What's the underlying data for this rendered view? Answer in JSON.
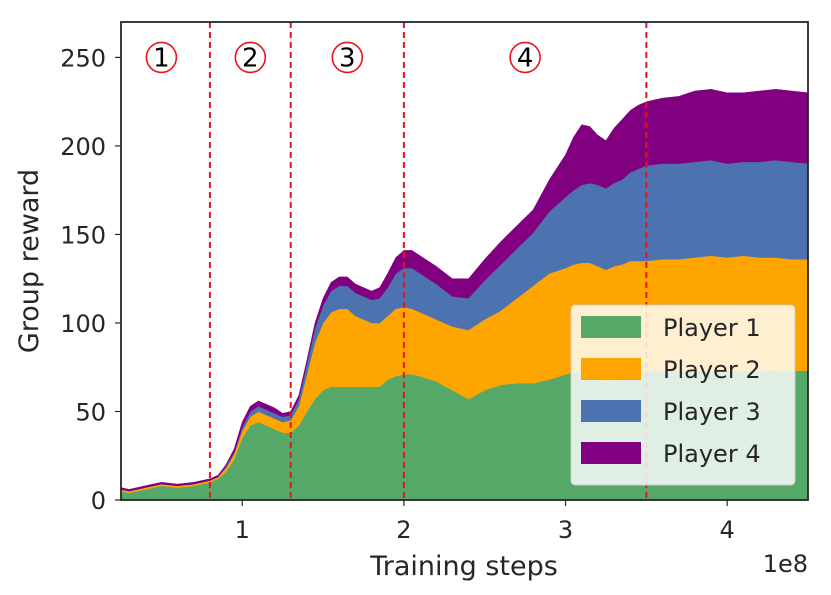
{
  "chart_data": {
    "type": "area",
    "stacked": true,
    "xlabel": "Training steps",
    "ylabel": "Group reward",
    "x_multiplier_label": "1e8",
    "xlim": [
      0.25,
      4.5
    ],
    "ylim": [
      0,
      270
    ],
    "x_ticks": [
      1,
      2,
      3,
      4
    ],
    "x_tick_labels": [
      "1",
      "2",
      "3",
      "4"
    ],
    "y_ticks": [
      0,
      50,
      100,
      150,
      200,
      250
    ],
    "y_tick_labels": [
      "0",
      "50",
      "100",
      "150",
      "200",
      "250"
    ],
    "grid": false,
    "legend_position": "lower-right",
    "phase_lines": [
      0.8,
      1.3,
      2.0,
      3.5
    ],
    "phase_labels": [
      {
        "x": 0.5,
        "y": 250,
        "label": "1"
      },
      {
        "x": 1.05,
        "y": 250,
        "label": "2"
      },
      {
        "x": 1.65,
        "y": 250,
        "label": "3"
      },
      {
        "x": 2.75,
        "y": 250,
        "label": "4"
      }
    ],
    "x": [
      0.25,
      0.3,
      0.4,
      0.5,
      0.6,
      0.7,
      0.8,
      0.85,
      0.9,
      0.95,
      1.0,
      1.05,
      1.1,
      1.15,
      1.2,
      1.25,
      1.3,
      1.35,
      1.4,
      1.45,
      1.5,
      1.55,
      1.6,
      1.65,
      1.7,
      1.75,
      1.8,
      1.85,
      1.9,
      1.95,
      2.0,
      2.05,
      2.1,
      2.2,
      2.3,
      2.4,
      2.5,
      2.6,
      2.7,
      2.8,
      2.9,
      3.0,
      3.05,
      3.1,
      3.15,
      3.2,
      3.25,
      3.3,
      3.35,
      3.4,
      3.45,
      3.5,
      3.6,
      3.7,
      3.8,
      3.9,
      4.0,
      4.1,
      4.2,
      4.3,
      4.4,
      4.5
    ],
    "series": [
      {
        "name": "Player 1",
        "color": "#55a868",
        "values": [
          5,
          4,
          6,
          8,
          7,
          8,
          10,
          12,
          16,
          23,
          35,
          42,
          44,
          42,
          40,
          38,
          38,
          42,
          50,
          57,
          62,
          64,
          64,
          64,
          64,
          64,
          64,
          64,
          68,
          70,
          71,
          71,
          70,
          67,
          62,
          57,
          62,
          65,
          66,
          66,
          68,
          71,
          72,
          72,
          70,
          68,
          66,
          68,
          70,
          72,
          73,
          73,
          73,
          73,
          73,
          73,
          73,
          73,
          73,
          73,
          73,
          73
        ]
      },
      {
        "name": "Player 2",
        "color": "#ffa500",
        "values": [
          1,
          1,
          1,
          1,
          1,
          1,
          1,
          1,
          2,
          3,
          4,
          5,
          6,
          6,
          6,
          6,
          7,
          11,
          21,
          32,
          38,
          42,
          44,
          44,
          40,
          38,
          36,
          36,
          36,
          38,
          38,
          37,
          36,
          35,
          36,
          39,
          40,
          42,
          48,
          55,
          60,
          60,
          61,
          62,
          64,
          64,
          64,
          64,
          63,
          63,
          62,
          62,
          63,
          63,
          64,
          65,
          64,
          65,
          64,
          64,
          63,
          63
        ]
      },
      {
        "name": "Player 3",
        "color": "#4c72b0",
        "values": [
          0,
          0,
          0,
          0,
          0,
          0,
          0,
          0,
          1,
          1,
          2,
          3,
          3,
          3,
          3,
          3,
          3,
          4,
          6,
          8,
          10,
          12,
          13,
          13,
          13,
          13,
          13,
          14,
          16,
          20,
          22,
          23,
          22,
          20,
          17,
          18,
          22,
          26,
          28,
          30,
          35,
          40,
          42,
          44,
          45,
          46,
          46,
          47,
          48,
          50,
          52,
          54,
          54,
          54,
          54,
          54,
          53,
          53,
          54,
          55,
          55,
          54
        ]
      },
      {
        "name": "Player 4",
        "color": "#800080",
        "values": [
          1,
          1,
          1,
          1,
          1,
          1,
          1,
          1,
          1,
          2,
          3,
          3,
          3,
          3,
          3,
          2,
          2,
          2,
          2,
          3,
          4,
          5,
          5,
          5,
          5,
          5,
          5,
          6,
          8,
          9,
          10,
          10,
          10,
          10,
          10,
          11,
          12,
          13,
          13,
          13,
          18,
          24,
          30,
          34,
          32,
          28,
          27,
          31,
          34,
          35,
          36,
          36,
          37,
          38,
          40,
          40,
          40,
          39,
          40,
          40,
          40,
          40
        ]
      }
    ]
  }
}
